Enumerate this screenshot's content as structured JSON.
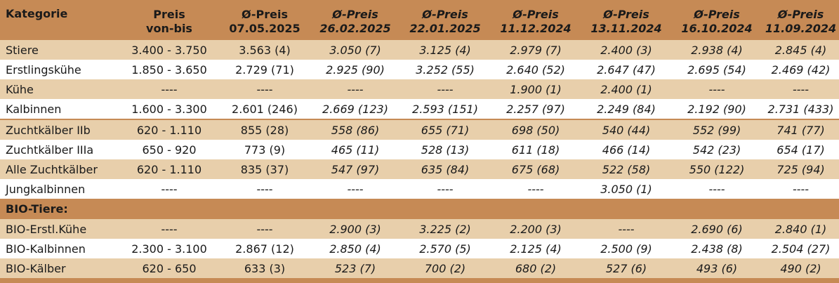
{
  "header": {
    "kategorie": "Kategorie",
    "preis_l1": "Preis",
    "preis_l2": "von-bis",
    "cols": [
      {
        "l1": "Ø-Preis",
        "l2": "07.05.2025"
      },
      {
        "l1": "Ø-Preis",
        "l2": "26.02.2025"
      },
      {
        "l1": "Ø-Preis",
        "l2": "22.01.2025"
      },
      {
        "l1": "Ø-Preis",
        "l2": "11.12.2024"
      },
      {
        "l1": "Ø-Preis",
        "l2": "13.11.2024"
      },
      {
        "l1": "Ø-Preis",
        "l2": "16.10.2024"
      },
      {
        "l1": "Ø-Preis",
        "l2": "11.09.2024"
      }
    ]
  },
  "rows": [
    {
      "cat": " Stiere",
      "range": "3.400 - 3.750",
      "v": [
        "3.563 (4)",
        "3.050 (7)",
        "3.125 (4)",
        "2.979 (7)",
        "2.400 (3)",
        "2.938 (4)",
        "2.845 (4)"
      ]
    },
    {
      "cat": "Erstlingskühe",
      "range": "1.850 - 3.650",
      "v": [
        "2.729 (71)",
        "2.925 (90)",
        "3.252 (55)",
        "2.640 (52)",
        "2.647 (47)",
        "2.695 (54)",
        "2.469 (42)"
      ]
    },
    {
      "cat": "Kühe",
      "range": "----",
      "v": [
        "----",
        "----",
        "----",
        "1.900 (1)",
        "2.400 (1)",
        "----",
        "----"
      ]
    },
    {
      "cat": "Kalbinnen",
      "range": "1.600 - 3.300",
      "v": [
        "2.601 (246)",
        "2.669 (123)",
        "2.593 (151)",
        "2.257 (97)",
        "2.249 (84)",
        "2.192 (90)",
        "2.731 (433)"
      ]
    },
    {
      "cat": "Zuchtkälber IIb",
      "range": "620 - 1.110",
      "v": [
        "855 (28)",
        "558 (86)",
        "655 (71)",
        "698 (50)",
        "540 (44)",
        "552 (99)",
        "741 (77)"
      ]
    },
    {
      "cat": "Zuchtkälber IIIa",
      "range": "650 - 920",
      "v": [
        "773 (9)",
        "465 (11)",
        "528 (13)",
        "611 (18)",
        "466 (14)",
        "542 (23)",
        "654 (17)"
      ]
    },
    {
      "cat": "Alle Zuchtkälber",
      "range": "620 - 1.110",
      "v": [
        "835 (37)",
        "547 (97)",
        "635 (84)",
        "675 (68)",
        "522 (58)",
        "550 (122)",
        "725 (94)"
      ]
    },
    {
      "cat": "Jungkalbinnen",
      "range": "----",
      "v": [
        "----",
        "----",
        "----",
        "----",
        "3.050 (1)",
        "----",
        "----"
      ]
    }
  ],
  "section": {
    "label": "BIO-Tiere:"
  },
  "bio_rows": [
    {
      "cat": "BIO-Erstl.Kühe",
      "range": "----",
      "v": [
        "----",
        "2.900 (3)",
        "3.225 (2)",
        "2.200 (3)",
        "----",
        "2.690 (6)",
        "2.840 (1)"
      ]
    },
    {
      "cat": "BIO-Kalbinnen",
      "range": "2.300 - 3.100",
      "v": [
        "2.867 (12)",
        "2.850 (4)",
        "2.570 (5)",
        "2.125 (4)",
        "2.500 (9)",
        "2.438 (8)",
        "2.504 (27)"
      ]
    },
    {
      "cat": "BIO-Kälber",
      "range": "620 - 650",
      "v": [
        "633 (3)",
        "523 (7)",
        "700 (2)",
        "680 (2)",
        "527 (6)",
        "493 (6)",
        "490 (2)"
      ]
    }
  ],
  "colors": {
    "header_bg": "#c68a55",
    "stripe": "#e8cfab",
    "white": "#ffffff"
  }
}
